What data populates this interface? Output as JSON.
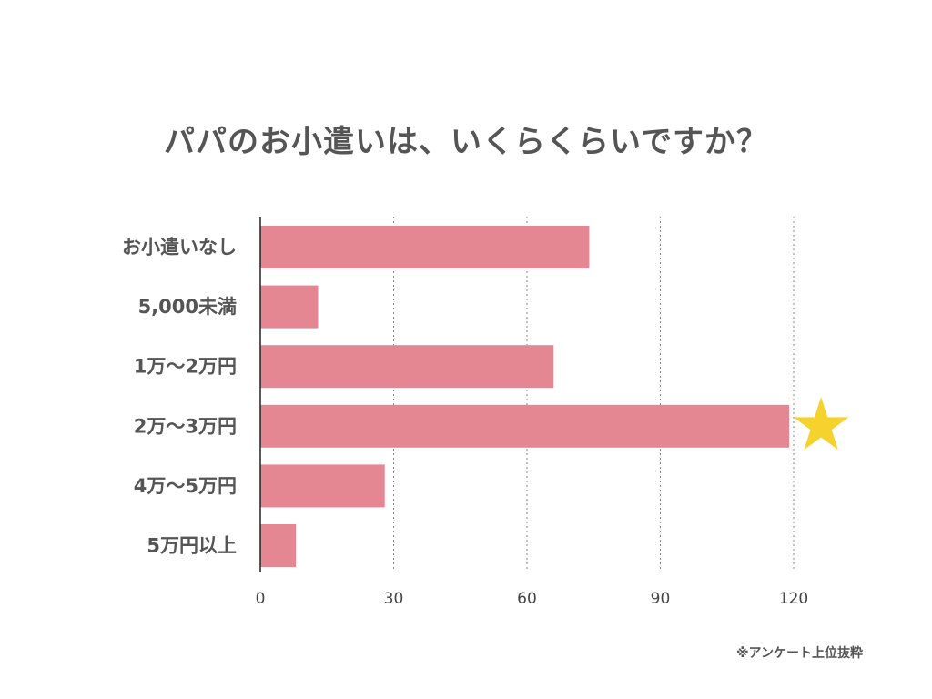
{
  "chart_data": {
    "type": "bar",
    "orientation": "horizontal",
    "title": "パパのお小遣いは、いくらくらいですか？",
    "categories": [
      "お小遣いなし",
      "5,000未満",
      "1万〜2万円",
      "2万〜3万円",
      "4万〜5万円",
      "5万円以上"
    ],
    "values": [
      74,
      13,
      66,
      119,
      28,
      8
    ],
    "xlim": [
      0,
      120
    ],
    "xticks": [
      "0",
      "30",
      "60",
      "90",
      "120"
    ],
    "xtick_values": [
      0,
      30,
      60,
      90,
      120
    ],
    "grid": "vertical dotted",
    "highlight_index": 3,
    "highlight_marker": "star-icon",
    "colors": {
      "bar": "#e48793",
      "star": "#f6d22c",
      "text": "#555555",
      "grid": "#888888"
    }
  },
  "footnote": "※アンケート上位抜粋"
}
